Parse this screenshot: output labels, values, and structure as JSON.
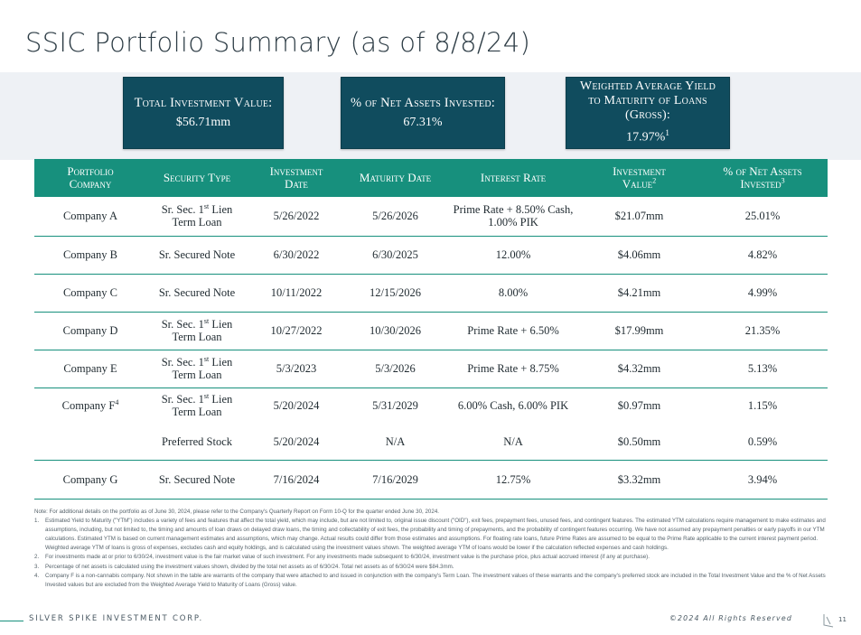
{
  "title": "SSIC Portfolio Summary (as of 8/8/24)",
  "kpis": [
    {
      "label": "Total Investment Value:",
      "value": "$56.71mm"
    },
    {
      "label": "% of Net Assets Invested:",
      "value": "67.31%"
    },
    {
      "label_line1": "Weighted Average Yield",
      "label_line2": "to Maturity of Loans",
      "label_line3": "(Gross):",
      "value": "17.97%",
      "footnote": "1"
    }
  ],
  "table": {
    "headers": {
      "company_1": "Portfolio",
      "company_2": "Company",
      "security": "Security Type",
      "investment_date_1": "Investment",
      "investment_date_2": "Date",
      "maturity": "Maturity Date",
      "interest": "Interest Rate",
      "value_1": "Investment",
      "value_2": "Value",
      "value_note": "2",
      "pct_1": "% of Net Assets",
      "pct_2": "Invested",
      "pct_note": "3"
    },
    "rows": [
      {
        "company": "Company A",
        "security_1": "Sr. Sec. 1",
        "security_sup": "st",
        "security_2": " Lien",
        "security_3": "Term Loan",
        "investment_date": "5/26/2022",
        "maturity": "5/26/2026",
        "interest_1": "Prime Rate + 8.50% Cash,",
        "interest_2": "1.00% PIK",
        "value": "$21.07mm",
        "pct": "25.01%"
      },
      {
        "company": "Company B",
        "security": "Sr. Secured Note",
        "investment_date": "6/30/2022",
        "maturity": "6/30/2025",
        "interest": "12.00%",
        "value": "$4.06mm",
        "pct": "4.82%"
      },
      {
        "company": "Company C",
        "security": "Sr. Secured Note",
        "investment_date": "10/11/2022",
        "maturity": "12/15/2026",
        "interest": "8.00%",
        "value": "$4.21mm",
        "pct": "4.99%"
      },
      {
        "company": "Company D",
        "security_1": "Sr. Sec. 1",
        "security_sup": "st",
        "security_2": " Lien",
        "security_3": "Term Loan",
        "investment_date": "10/27/2022",
        "maturity": "10/30/2026",
        "interest": "Prime Rate + 6.50%",
        "value": "$17.99mm",
        "pct": "21.35%"
      },
      {
        "company": "Company E",
        "security_1": "Sr. Sec. 1",
        "security_sup": "st",
        "security_2": " Lien",
        "security_3": "Term Loan",
        "investment_date": "5/3/2023",
        "maturity": "5/3/2026",
        "interest": "Prime Rate + 8.75%",
        "value": "$4.32mm",
        "pct": "5.13%"
      },
      {
        "company": "Company F",
        "company_note": "4",
        "security_1": "Sr. Sec. 1",
        "security_sup": "st",
        "security_2": " Lien",
        "security_3": "Term Loan",
        "investment_date": "5/20/2024",
        "maturity": "5/31/2029",
        "interest": "6.00% Cash, 6.00% PIK",
        "value": "$0.97mm",
        "pct": "1.15%"
      },
      {
        "company": "",
        "security": "Preferred Stock",
        "investment_date": "5/20/2024",
        "maturity": "N/A",
        "interest": "N/A",
        "value": "$0.50mm",
        "pct": "0.59%"
      },
      {
        "company": "Company G",
        "security": "Sr. Secured Note",
        "investment_date": "7/16/2024",
        "maturity": "7/16/2029",
        "interest": "12.75%",
        "value": "$3.32mm",
        "pct": "3.94%"
      }
    ]
  },
  "notes": {
    "intro": "Note: For additional details on the portfolio as of June 30, 2024, please refer to the Company's Quarterly Report on Form 10-Q for the quarter ended June 30, 2024.",
    "items": [
      {
        "num": "1.",
        "text": "Estimated Yield to Maturity (\"YTM\") includes a variety of fees and features that affect the total yield, which may include, but are not limited to, original issue discount (\"OID\"), exit fees, prepayment fees, unused fees, and contingent features. The estimated YTM calculations require management to make estimates and assumptions, including, but not limited to, the timing and amounts of loan draws on delayed draw loans, the timing and collectability of exit fees, the probability and timing of prepayments, and the probability of contingent features occurring. We have not assumed any prepayment penalties or early payoffs in our YTM calculations. Estimated YTM is based on current management estimates and assumptions, which may change. Actual results could differ from those estimates and assumptions. For floating rate loans, future Prime Rates are assumed to be equal to the Prime Rate applicable to the current interest payment period. Weighted average YTM of loans is gross of expenses, excludes cash and equity holdings, and is calculated using the investment values shown. The weighted average YTM of loans would be lower if the calculation reflected expenses and cash holdings."
      },
      {
        "num": "2.",
        "text": "For investments made at or prior to 6/30/24, investment value is the fair market value of such investment. For any investments made subsequent to 6/30/24, investment value is the purchase price, plus actual accrued interest (if any at purchase)."
      },
      {
        "num": "3.",
        "text": "Percentage of net assets is calculated using the investment values shown, divided by the total net assets as of 6/30/24. Total net assets as of 6/30/24 were $84.3mm."
      },
      {
        "num": "4.",
        "text": "Company F is a non-cannabis company. Not shown in the table are warrants of the company that were attached to and issued in conjunction with the company's Term Loan. The investment values of these warrants and the company's preferred stock are included in the Total Investment Value and the % of Net Assets Invested values but are excluded from the Weighted Average Yield to Maturity of Loans (Gross) value."
      }
    ]
  },
  "footer": {
    "company": "SILVER SPIKE INVESTMENT CORP.",
    "copyright": "©2024 All Rights Reserved",
    "page": "11"
  },
  "colors": {
    "header_teal": "#17907d",
    "kpi_navy": "#104c5e",
    "band": "#eef1f5"
  }
}
